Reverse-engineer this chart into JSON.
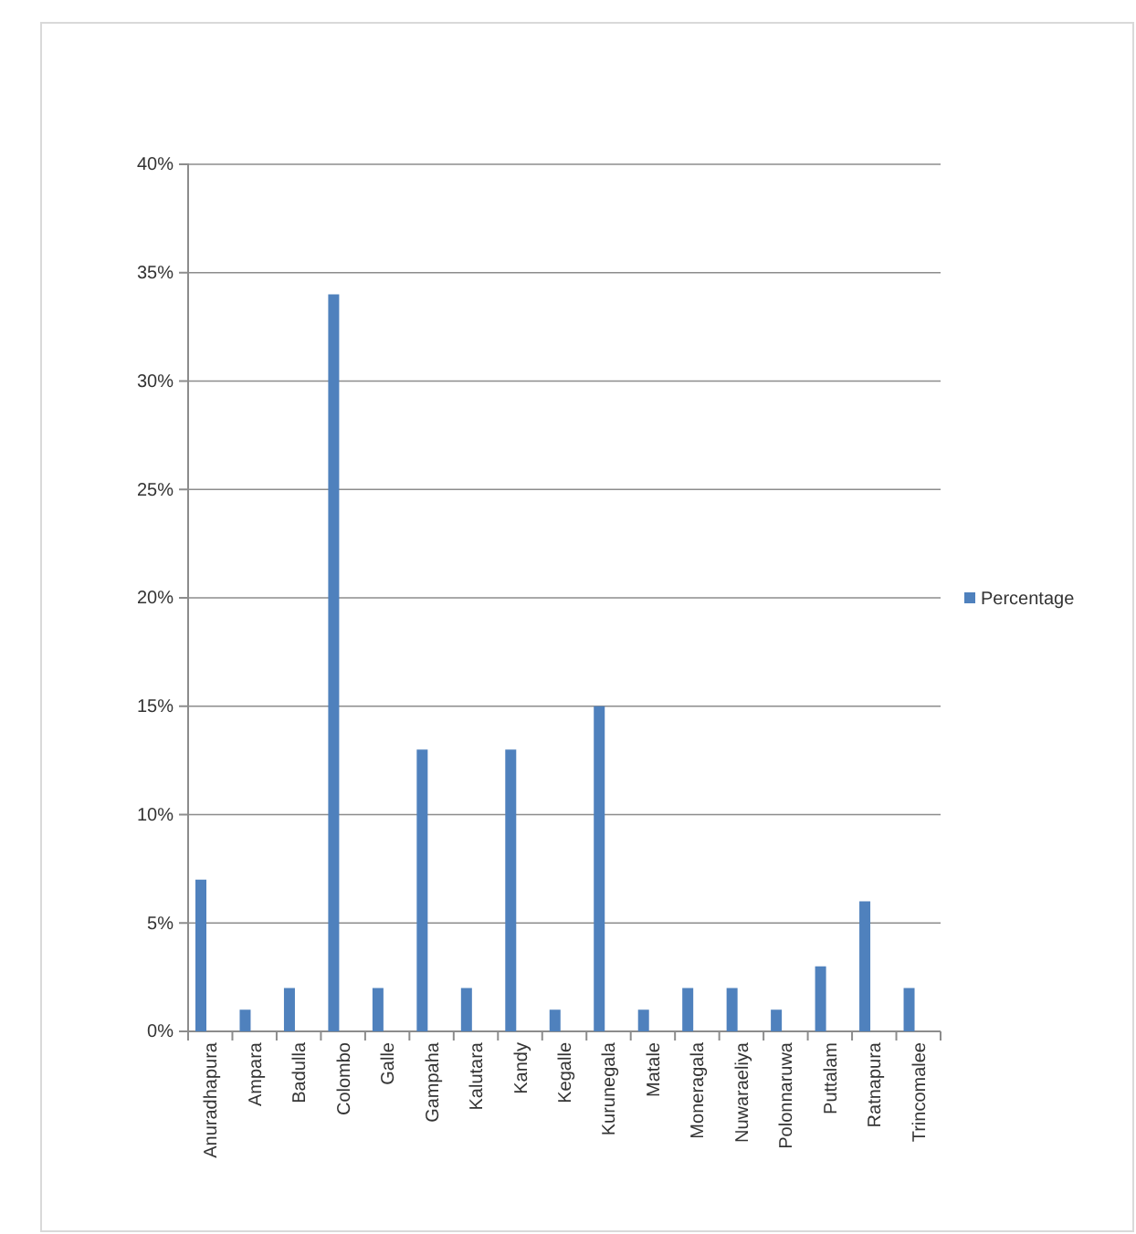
{
  "chart_data": {
    "type": "bar",
    "categories": [
      "Anuradhapura",
      "Ampara",
      "Badulla",
      "Colombo",
      "Galle",
      "Gampaha",
      "Kalutara",
      "Kandy",
      "Kegalle",
      "Kurunegala",
      "Matale",
      "Moneragala",
      "Nuwaraeliya",
      "Polonnaruwa",
      "Puttalam",
      "Ratnapura",
      "Trincomalee"
    ],
    "series": [
      {
        "name": "Percentage",
        "color": "#4f81bd",
        "values": [
          7,
          1,
          2,
          34,
          2,
          13,
          2,
          13,
          1,
          15,
          1,
          2,
          2,
          1,
          3,
          6,
          2
        ]
      }
    ],
    "ylim": [
      0,
      40
    ],
    "yticks": [
      {
        "value": 0,
        "label": "0%"
      },
      {
        "value": 5,
        "label": "5%"
      },
      {
        "value": 10,
        "label": "10%"
      },
      {
        "value": 15,
        "label": "15%"
      },
      {
        "value": 20,
        "label": "20%"
      },
      {
        "value": 25,
        "label": "25%"
      },
      {
        "value": 30,
        "label": "30%"
      },
      {
        "value": 35,
        "label": "35%"
      },
      {
        "value": 40,
        "label": "40%"
      }
    ],
    "grid": "y",
    "legend": "right"
  }
}
